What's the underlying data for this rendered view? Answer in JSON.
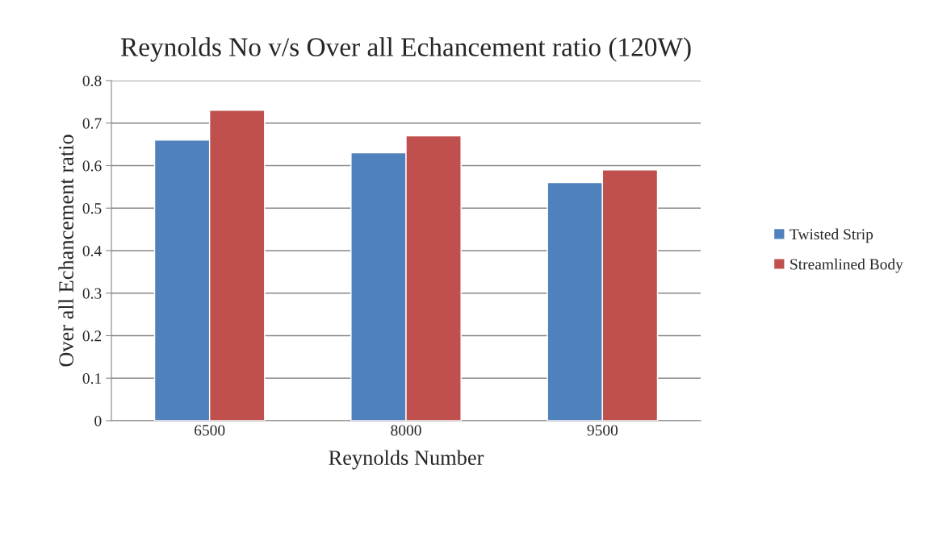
{
  "chart_data": {
    "type": "bar",
    "title": "Reynolds No v/s Over all Echancement ratio (120W)",
    "xlabel": "Reynolds Number",
    "ylabel": "Over all Echancement ratio",
    "categories": [
      "6500",
      "8000",
      "9500"
    ],
    "series": [
      {
        "name": "Twisted Strip",
        "color": "#4f81bd",
        "values": [
          0.66,
          0.63,
          0.56
        ]
      },
      {
        "name": "Streamlined Body",
        "color": "#c0504d",
        "values": [
          0.73,
          0.67,
          0.59
        ]
      }
    ],
    "ylim": [
      0,
      0.8
    ],
    "yticks": [
      {
        "value": 0,
        "label": "0"
      },
      0.1,
      0.2,
      0.3,
      0.4,
      0.5,
      0.6,
      0.7,
      0.8
    ],
    "grid": "y",
    "legend": "right"
  }
}
